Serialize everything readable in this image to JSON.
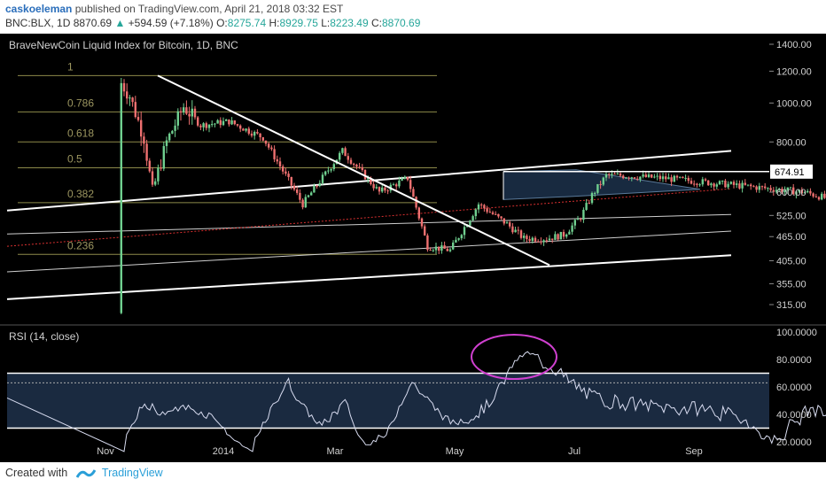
{
  "header": {
    "author": "caskoeleman",
    "published_text": "published on TradingView.com, April 21, 2018 03:32 EST",
    "symbol": "BNC:BLX, 1D",
    "last": "8870.69",
    "change": "+594.59 (+7.18%)",
    "open_label": "O:",
    "open": "8275.74",
    "high_label": "H:",
    "high": "8929.75",
    "low_label": "L:",
    "low": "8223.49",
    "close_label": "C:",
    "close": "8870.69"
  },
  "footer": {
    "created_with": "Created with",
    "brand": "TradingView"
  },
  "colors": {
    "background": "#000000",
    "candle_up": "#6fcf8f",
    "candle_down": "#ef7070",
    "trendline": "#ffffff",
    "fib_line": "#8d8a4a",
    "fib_label": "#9c9660",
    "midline": "#d83030",
    "triangle_fill": "#1e3550",
    "rsi_line": "#d8dcf0",
    "rsi_band": "#1a2a40",
    "rsi_circle": "#d040d0"
  },
  "chart_data": [
    {
      "type": "candlestick",
      "title": "BraveNewCoin Liquid Index for Bitcoin, 1D, BNC",
      "yscale": "log",
      "yticks": [
        "1400.00",
        "1200.00",
        "1000.00",
        "800.00",
        "600.00",
        "525.00",
        "465.00",
        "405.00",
        "355.00",
        "315.00"
      ],
      "ytick_values": [
        1400,
        1200,
        1000,
        800,
        600,
        525,
        465,
        405,
        355,
        315
      ],
      "price_tag": "674.91",
      "xticks": [
        "Nov",
        "2014",
        "Mar",
        "May",
        "Jul",
        "Sep"
      ],
      "fib_levels": [
        {
          "label": "1",
          "price": 1170
        },
        {
          "label": "0.786",
          "price": 950
        },
        {
          "label": "0.618",
          "price": 800
        },
        {
          "label": "0.5",
          "price": 690
        },
        {
          "label": "0.382",
          "price": 565
        },
        {
          "label": "0.236",
          "price": 420
        }
      ]
    },
    {
      "type": "line",
      "title": "RSI (14, close)",
      "ylim": [
        13,
        100
      ],
      "yticks": [
        "100.0000",
        "80.0000",
        "60.0000",
        "40.0000",
        "20.0000"
      ],
      "ytick_values": [
        100,
        80,
        60,
        40,
        20
      ],
      "bands": [
        30,
        70
      ]
    }
  ]
}
